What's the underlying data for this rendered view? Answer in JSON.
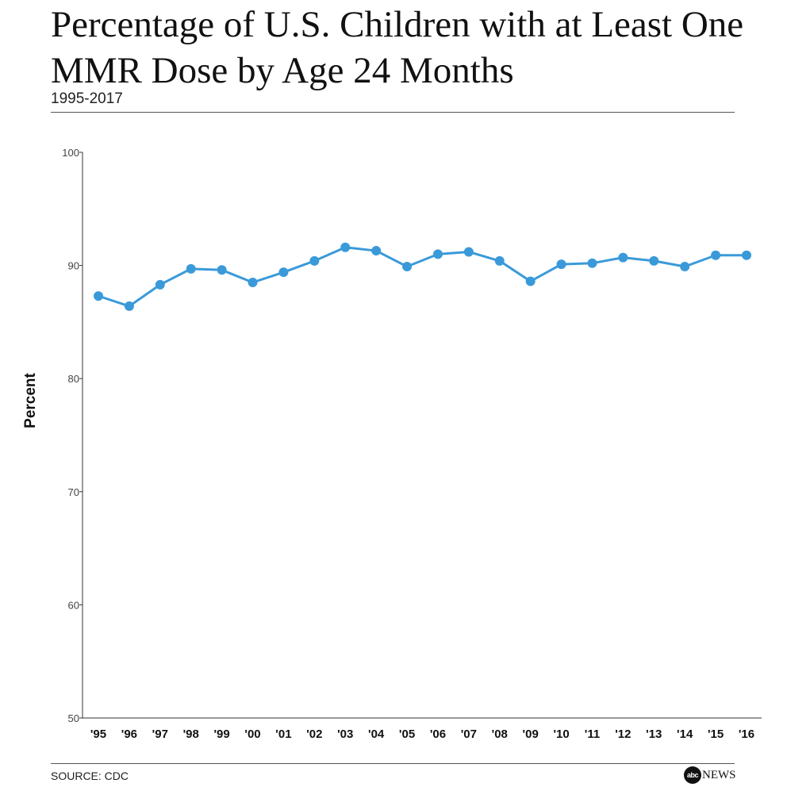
{
  "header": {
    "title": "Percentage of U.S. Children with at Least One MMR Dose by Age 24 Months",
    "subtitle": "1995-2017"
  },
  "footer": {
    "source": "SOURCE: CDC",
    "logo_abc": "abc",
    "logo_news": "NEWS"
  },
  "colors": {
    "series": "#3a9ad9",
    "axis": "#333333"
  },
  "chart_data": {
    "type": "line",
    "categories": [
      "'95",
      "'96",
      "'97",
      "'98",
      "'99",
      "'00",
      "'01",
      "'02",
      "'03",
      "'04",
      "'05",
      "'06",
      "'07",
      "'08",
      "'09",
      "'10",
      "'11",
      "'12",
      "'13",
      "'14",
      "'15",
      "'16"
    ],
    "series": [
      {
        "values": [
          87.3,
          86.4,
          88.3,
          89.7,
          89.6,
          88.5,
          89.4,
          90.4,
          91.6,
          91.3,
          89.9,
          91.0,
          91.2,
          90.4,
          88.6,
          90.1,
          90.2,
          90.7,
          90.4,
          89.9,
          90.9,
          90.9
        ]
      }
    ],
    "ylabel": "Percent",
    "xlabel": "",
    "ylim": [
      50,
      100
    ],
    "yticks": [
      50,
      60,
      70,
      80,
      90,
      100
    ],
    "grid": false
  }
}
